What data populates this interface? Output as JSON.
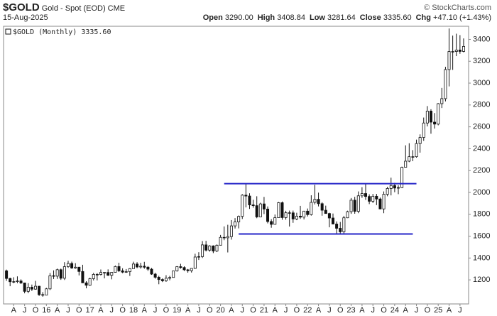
{
  "header": {
    "symbol": "$GOLD",
    "name": "Gold - Spot (EOD)",
    "exchange": "CME",
    "source": "© StockCharts.com",
    "date": "15-Aug-2025",
    "quote": [
      {
        "label": "Open",
        "value": "3290.00"
      },
      {
        "label": "High",
        "value": "3408.84"
      },
      {
        "label": "Low",
        "value": "3281.64"
      },
      {
        "label": "Close",
        "value": "3335.60"
      },
      {
        "label": "Chg",
        "value": "+47.10 (+1.43%)"
      }
    ]
  },
  "chart_data": {
    "type": "candlestick",
    "legend": "$GOLD (Monthly) 3335.60",
    "x": [
      "2015-01",
      "2015-02",
      "2015-03",
      "2015-04",
      "2015-05",
      "2015-06",
      "2015-07",
      "2015-08",
      "2015-09",
      "2015-10",
      "2015-11",
      "2015-12",
      "2016-01",
      "2016-02",
      "2016-03",
      "2016-04",
      "2016-05",
      "2016-06",
      "2016-07",
      "2016-08",
      "2016-09",
      "2016-10",
      "2016-11",
      "2016-12",
      "2017-01",
      "2017-02",
      "2017-03",
      "2017-04",
      "2017-05",
      "2017-06",
      "2017-07",
      "2017-08",
      "2017-09",
      "2017-10",
      "2017-11",
      "2017-12",
      "2018-01",
      "2018-02",
      "2018-03",
      "2018-04",
      "2018-05",
      "2018-06",
      "2018-07",
      "2018-08",
      "2018-09",
      "2018-10",
      "2018-11",
      "2018-12",
      "2019-01",
      "2019-02",
      "2019-03",
      "2019-04",
      "2019-05",
      "2019-06",
      "2019-07",
      "2019-08",
      "2019-09",
      "2019-10",
      "2019-11",
      "2019-12",
      "2020-01",
      "2020-02",
      "2020-03",
      "2020-04",
      "2020-05",
      "2020-06",
      "2020-07",
      "2020-08",
      "2020-09",
      "2020-10",
      "2020-11",
      "2020-12",
      "2021-01",
      "2021-02",
      "2021-03",
      "2021-04",
      "2021-05",
      "2021-06",
      "2021-07",
      "2021-08",
      "2021-09",
      "2021-10",
      "2021-11",
      "2021-12",
      "2022-01",
      "2022-02",
      "2022-03",
      "2022-04",
      "2022-05",
      "2022-06",
      "2022-07",
      "2022-08",
      "2022-09",
      "2022-10",
      "2022-11",
      "2022-12",
      "2023-01",
      "2023-02",
      "2023-03",
      "2023-04",
      "2023-05",
      "2023-06",
      "2023-07",
      "2023-08",
      "2023-09",
      "2023-10",
      "2023-11",
      "2023-12",
      "2024-01",
      "2024-02",
      "2024-03",
      "2024-04",
      "2024-05",
      "2024-06",
      "2024-07",
      "2024-08",
      "2024-09",
      "2024-10",
      "2024-11",
      "2024-12",
      "2025-01",
      "2025-02",
      "2025-03",
      "2025-04",
      "2025-05",
      "2025-06",
      "2025-07",
      "2025-08"
    ],
    "open": [
      1199,
      1283,
      1213,
      1183,
      1184,
      1190,
      1172,
      1095,
      1133,
      1115,
      1142,
      1065,
      1061,
      1118,
      1238,
      1234,
      1293,
      1215,
      1321,
      1350,
      1309,
      1316,
      1277,
      1173,
      1151,
      1211,
      1250,
      1249,
      1268,
      1268,
      1242,
      1269,
      1322,
      1283,
      1271,
      1275,
      1303,
      1345,
      1318,
      1325,
      1316,
      1298,
      1253,
      1224,
      1203,
      1192,
      1215,
      1222,
      1282,
      1321,
      1313,
      1292,
      1284,
      1305,
      1409,
      1413,
      1520,
      1472,
      1511,
      1464,
      1517,
      1589,
      1585,
      1596,
      1694,
      1730,
      1781,
      1975,
      1967,
      1886,
      1879,
      1776,
      1895,
      1848,
      1734,
      1708,
      1769,
      1906,
      1770,
      1814,
      1813,
      1757,
      1783,
      1774,
      1829,
      1797,
      1909,
      1937,
      1897,
      1837,
      1807,
      1766,
      1711,
      1672,
      1640,
      1768,
      1824,
      1929,
      1827,
      1969,
      1990,
      1963,
      1919,
      1965,
      1940,
      1849,
      1983,
      2036,
      2063,
      2040,
      2044,
      2230,
      2286,
      2327,
      2327,
      2447,
      2503,
      2635,
      2744,
      2643,
      2625,
      2812,
      2858,
      3124,
      3289,
      3289,
      3303,
      3290
    ],
    "high": [
      1307,
      1294,
      1220,
      1224,
      1232,
      1205,
      1175,
      1170,
      1157,
      1191,
      1146,
      1088,
      1127,
      1263,
      1287,
      1303,
      1303,
      1362,
      1375,
      1367,
      1353,
      1319,
      1338,
      1188,
      1220,
      1264,
      1262,
      1295,
      1270,
      1296,
      1272,
      1331,
      1357,
      1306,
      1299,
      1307,
      1366,
      1362,
      1356,
      1365,
      1326,
      1309,
      1265,
      1237,
      1214,
      1243,
      1237,
      1284,
      1326,
      1347,
      1324,
      1300,
      1306,
      1439,
      1453,
      1555,
      1557,
      1518,
      1516,
      1524,
      1611,
      1689,
      1704,
      1747,
      1765,
      1789,
      1984,
      2075,
      1992,
      1933,
      1965,
      1906,
      1959,
      1872,
      1755,
      1798,
      1913,
      1917,
      1832,
      1834,
      1834,
      1814,
      1877,
      1831,
      1853,
      1974,
      2070,
      1998,
      1910,
      1879,
      1814,
      1807,
      1735,
      1730,
      1786,
      1833,
      1949,
      1960,
      2009,
      2048,
      2078,
      1983,
      1987,
      1987,
      1953,
      2009,
      2052,
      2135,
      2088,
      2065,
      2236,
      2431,
      2450,
      2387,
      2483,
      2531,
      2685,
      2790,
      2761,
      2726,
      2817,
      2956,
      3149,
      3500,
      3435,
      3452,
      3439,
      3408.84
    ],
    "low": [
      1167,
      1191,
      1142,
      1170,
      1170,
      1162,
      1077,
      1078,
      1098,
      1110,
      1053,
      1046,
      1061,
      1107,
      1208,
      1209,
      1200,
      1199,
      1310,
      1301,
      1302,
      1241,
      1171,
      1123,
      1146,
      1195,
      1195,
      1240,
      1214,
      1236,
      1205,
      1267,
      1272,
      1261,
      1265,
      1236,
      1302,
      1307,
      1303,
      1302,
      1282,
      1246,
      1211,
      1160,
      1180,
      1182,
      1196,
      1221,
      1276,
      1302,
      1281,
      1266,
      1267,
      1301,
      1382,
      1400,
      1460,
      1458,
      1445,
      1454,
      1517,
      1563,
      1451,
      1568,
      1670,
      1671,
      1757,
      1863,
      1849,
      1860,
      1764,
      1775,
      1802,
      1717,
      1677,
      1706,
      1766,
      1750,
      1751,
      1688,
      1722,
      1746,
      1758,
      1753,
      1780,
      1788,
      1890,
      1872,
      1787,
      1805,
      1681,
      1709,
      1615,
      1617,
      1616,
      1765,
      1804,
      1805,
      1810,
      1950,
      1932,
      1893,
      1903,
      1884,
      1846,
      1810,
      1965,
      1973,
      2002,
      1984,
      2039,
      2228,
      2277,
      2286,
      2318,
      2364,
      2472,
      2604,
      2537,
      2584,
      2614,
      2772,
      2833,
      2970,
      3121,
      3247,
      3268,
      3281.64
    ],
    "close": [
      1283,
      1213,
      1183,
      1184,
      1190,
      1172,
      1095,
      1133,
      1115,
      1142,
      1065,
      1061,
      1118,
      1238,
      1234,
      1293,
      1215,
      1321,
      1350,
      1309,
      1316,
      1277,
      1173,
      1151,
      1211,
      1250,
      1249,
      1268,
      1268,
      1242,
      1269,
      1322,
      1283,
      1271,
      1275,
      1303,
      1345,
      1318,
      1325,
      1316,
      1298,
      1253,
      1224,
      1203,
      1192,
      1215,
      1222,
      1282,
      1321,
      1313,
      1292,
      1284,
      1305,
      1409,
      1413,
      1520,
      1472,
      1511,
      1464,
      1517,
      1589,
      1585,
      1596,
      1694,
      1730,
      1781,
      1975,
      1967,
      1886,
      1879,
      1776,
      1895,
      1848,
      1734,
      1708,
      1769,
      1906,
      1770,
      1814,
      1813,
      1757,
      1783,
      1774,
      1829,
      1797,
      1909,
      1937,
      1897,
      1837,
      1807,
      1766,
      1711,
      1672,
      1640,
      1768,
      1824,
      1929,
      1827,
      1969,
      1990,
      1963,
      1919,
      1965,
      1940,
      1849,
      1983,
      2036,
      2063,
      2040,
      2044,
      2230,
      2286,
      2327,
      2327,
      2447,
      2503,
      2635,
      2744,
      2643,
      2625,
      2812,
      2858,
      3124,
      3289,
      3289,
      3303,
      3290,
      3335.6
    ],
    "up_color": "#ffffff",
    "down_color": "#111111",
    "wick_color": "#111111",
    "ylim": [
      980,
      3520
    ],
    "yticks": [
      1200,
      1400,
      1600,
      1800,
      2000,
      2200,
      2400,
      2600,
      2800,
      3000,
      3200,
      3400
    ],
    "grid": false,
    "xticks": [
      {
        "value": "2015-04",
        "label": "A"
      },
      {
        "value": "2015-07",
        "label": "J"
      },
      {
        "value": "2015-10",
        "label": "O"
      },
      {
        "value": "2016-01",
        "label": "16"
      },
      {
        "value": "2016-04",
        "label": "A"
      },
      {
        "value": "2016-07",
        "label": "J"
      },
      {
        "value": "2016-10",
        "label": "O"
      },
      {
        "value": "2017-01",
        "label": "17"
      },
      {
        "value": "2017-04",
        "label": "A"
      },
      {
        "value": "2017-07",
        "label": "J"
      },
      {
        "value": "2017-10",
        "label": "O"
      },
      {
        "value": "2018-01",
        "label": "18"
      },
      {
        "value": "2018-04",
        "label": "A"
      },
      {
        "value": "2018-07",
        "label": "J"
      },
      {
        "value": "2018-10",
        "label": "O"
      },
      {
        "value": "2019-01",
        "label": "19"
      },
      {
        "value": "2019-04",
        "label": "A"
      },
      {
        "value": "2019-07",
        "label": "J"
      },
      {
        "value": "2019-10",
        "label": "O"
      },
      {
        "value": "2020-01",
        "label": "20"
      },
      {
        "value": "2020-04",
        "label": "A"
      },
      {
        "value": "2020-07",
        "label": "J"
      },
      {
        "value": "2020-10",
        "label": "O"
      },
      {
        "value": "2021-01",
        "label": "21"
      },
      {
        "value": "2021-04",
        "label": "A"
      },
      {
        "value": "2021-07",
        "label": "J"
      },
      {
        "value": "2021-10",
        "label": "O"
      },
      {
        "value": "2022-01",
        "label": "22"
      },
      {
        "value": "2022-04",
        "label": "A"
      },
      {
        "value": "2022-07",
        "label": "J"
      },
      {
        "value": "2022-10",
        "label": "O"
      },
      {
        "value": "2023-01",
        "label": "23"
      },
      {
        "value": "2023-04",
        "label": "A"
      },
      {
        "value": "2023-07",
        "label": "J"
      },
      {
        "value": "2023-10",
        "label": "O"
      },
      {
        "value": "2024-01",
        "label": "24"
      },
      {
        "value": "2024-04",
        "label": "A"
      },
      {
        "value": "2024-07",
        "label": "J"
      },
      {
        "value": "2024-10",
        "label": "O"
      },
      {
        "value": "2025-01",
        "label": "25"
      },
      {
        "value": "2025-04",
        "label": "A"
      },
      {
        "value": "2025-07",
        "label": "J"
      }
    ],
    "hlines": [
      {
        "value": 2080,
        "from": "2020-02",
        "to": "2024-07",
        "color": "#2424c8"
      },
      {
        "value": 1620,
        "from": "2020-06",
        "to": "2024-06",
        "color": "#2424c8"
      }
    ]
  }
}
